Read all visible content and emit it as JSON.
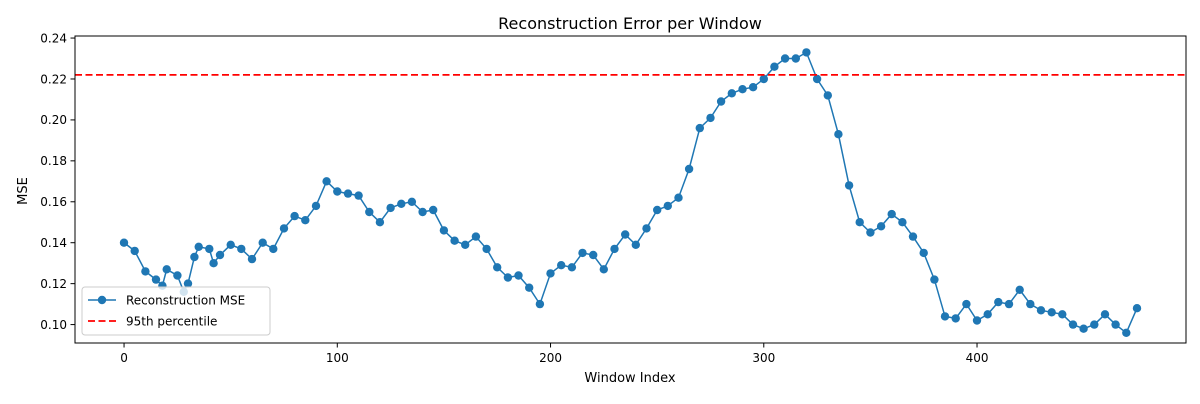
{
  "chart_data": {
    "type": "line",
    "title": "Reconstruction Error per Window",
    "xlabel": "Window Index",
    "ylabel": "MSE",
    "xlim": [
      -23,
      498
    ],
    "ylim": [
      0.091,
      0.241
    ],
    "x_ticks": [
      0,
      100,
      200,
      300,
      400
    ],
    "y_ticks": [
      0.1,
      0.12,
      0.14,
      0.16,
      0.18,
      0.2,
      0.22,
      0.24
    ],
    "x_tick_labels": [
      "0",
      "100",
      "200",
      "300",
      "400"
    ],
    "y_tick_labels": [
      "0.10",
      "0.12",
      "0.14",
      "0.16",
      "0.18",
      "0.20",
      "0.22",
      "0.24"
    ],
    "grid": false,
    "legend_position": "lower-left",
    "series": [
      {
        "name": "Reconstruction MSE",
        "color": "#1f77b4",
        "marker": "circle",
        "x": [
          0,
          5,
          10,
          15,
          18,
          20,
          25,
          28,
          30,
          33,
          35,
          40,
          42,
          45,
          50,
          55,
          60,
          65,
          70,
          75,
          80,
          85,
          90,
          95,
          100,
          105,
          110,
          115,
          120,
          125,
          130,
          135,
          140,
          145,
          150,
          155,
          160,
          165,
          170,
          175,
          180,
          185,
          190,
          195,
          200,
          205,
          210,
          215,
          220,
          225,
          230,
          235,
          240,
          245,
          250,
          255,
          260,
          265,
          270,
          275,
          280,
          285,
          290,
          295,
          300,
          305,
          310,
          315,
          320,
          325,
          330,
          335,
          340,
          345,
          350,
          355,
          360,
          365,
          370,
          375,
          380,
          385,
          390,
          395,
          400,
          405,
          410,
          415,
          420,
          425,
          430,
          435,
          440,
          445,
          450,
          455,
          460,
          465,
          470,
          475
        ],
        "y": [
          0.14,
          0.136,
          0.126,
          0.122,
          0.119,
          0.127,
          0.124,
          0.116,
          0.12,
          0.133,
          0.138,
          0.137,
          0.13,
          0.134,
          0.139,
          0.137,
          0.132,
          0.14,
          0.137,
          0.147,
          0.153,
          0.151,
          0.158,
          0.17,
          0.165,
          0.164,
          0.163,
          0.155,
          0.15,
          0.157,
          0.159,
          0.16,
          0.155,
          0.156,
          0.146,
          0.141,
          0.139,
          0.143,
          0.137,
          0.128,
          0.123,
          0.124,
          0.118,
          0.11,
          0.125,
          0.129,
          0.128,
          0.135,
          0.134,
          0.127,
          0.137,
          0.144,
          0.139,
          0.147,
          0.156,
          0.158,
          0.162,
          0.176,
          0.196,
          0.201,
          0.209,
          0.213,
          0.215,
          0.216,
          0.22,
          0.226,
          0.23,
          0.23,
          0.233,
          0.22,
          0.212,
          0.193,
          0.168,
          0.15,
          0.145,
          0.148,
          0.154,
          0.15,
          0.143,
          0.135,
          0.122,
          0.104,
          0.103,
          0.11,
          0.102,
          0.105,
          0.111,
          0.11,
          0.117,
          0.11,
          0.107,
          0.106,
          0.105,
          0.1,
          0.098,
          0.1,
          0.105,
          0.1,
          0.096,
          0.108
        ]
      },
      {
        "name": "95th percentile",
        "color": "#ff0000",
        "style": "dashed",
        "y_constant": 0.222
      }
    ]
  }
}
